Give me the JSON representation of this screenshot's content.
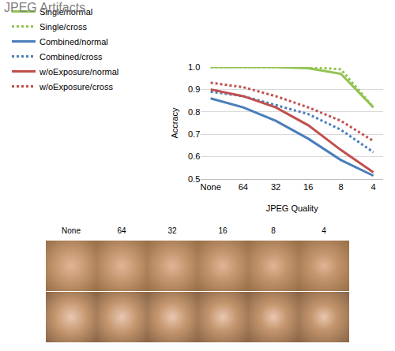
{
  "chart_data": {
    "type": "line",
    "title": "JPEG Artifacts",
    "xlabel": "JPEG Quality",
    "ylabel": "Accracy",
    "categories": [
      "None",
      "64",
      "32",
      "16",
      "8",
      "4"
    ],
    "series": [
      {
        "name": "Single/normal",
        "color": "#92c353",
        "line_style": "solid",
        "values": [
          1.0,
          1.0,
          1.0,
          0.995,
          0.97,
          0.82
        ]
      },
      {
        "name": "Single/cross",
        "color": "#92c353",
        "line_style": "dot",
        "values": [
          1.0,
          1.0,
          1.0,
          1.0,
          0.99,
          0.82
        ]
      },
      {
        "name": "Combined/normal",
        "color": "#4a7ebb",
        "line_style": "solid",
        "values": [
          0.86,
          0.82,
          0.76,
          0.68,
          0.585,
          0.515
        ]
      },
      {
        "name": "Combined/cross",
        "color": "#4a7ebb",
        "line_style": "dot",
        "values": [
          0.89,
          0.87,
          0.83,
          0.79,
          0.72,
          0.62
        ]
      },
      {
        "name": "w/oExposure/normal",
        "color": "#c0504d",
        "line_style": "solid",
        "values": [
          0.9,
          0.87,
          0.82,
          0.74,
          0.63,
          0.53
        ]
      },
      {
        "name": "w/oExposure/cross",
        "color": "#c0504d",
        "line_style": "dot",
        "values": [
          0.93,
          0.91,
          0.87,
          0.82,
          0.76,
          0.67
        ]
      }
    ],
    "ylim": [
      0.5,
      1.0
    ],
    "yticks": [
      0.5,
      0.6,
      0.7,
      0.8,
      0.9,
      {
        "value": 1.0,
        "label": "1.0"
      }
    ],
    "grid": true,
    "legend": "top"
  },
  "image_strip": {
    "labels": [
      "None",
      "64",
      "32",
      "16",
      "8",
      "4"
    ]
  }
}
